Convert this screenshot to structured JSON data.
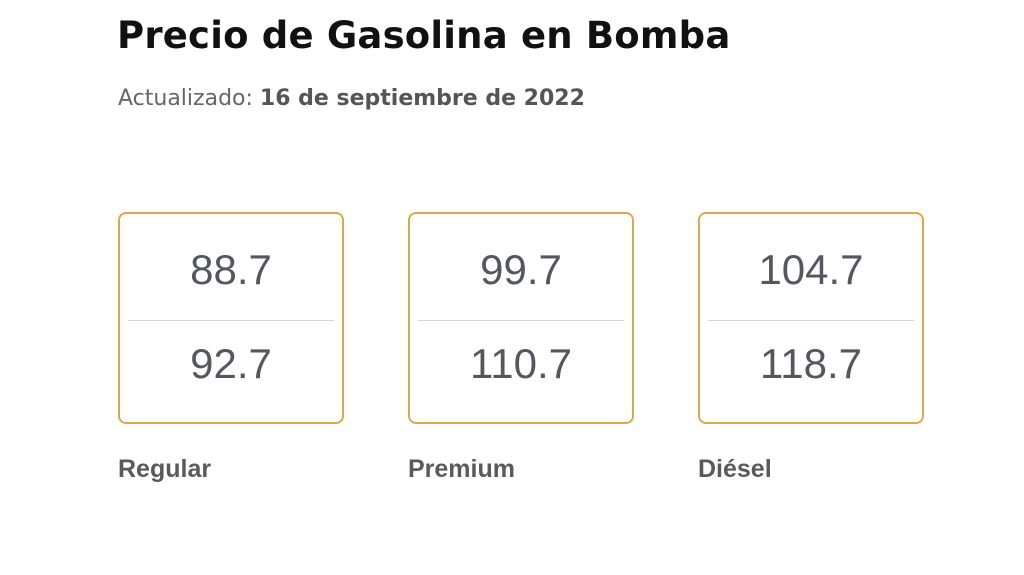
{
  "header": {
    "title": "Precio de Gasolina en Bomba",
    "updated_label": "Actualizado:",
    "updated_date": "16 de septiembre de 2022"
  },
  "colors": {
    "card_border": "#dba94a",
    "value_text": "#55565f"
  },
  "fuels": [
    {
      "label": "Regular",
      "price_top": "88.7",
      "price_bottom": "92.7"
    },
    {
      "label": "Premium",
      "price_top": "99.7",
      "price_bottom": "110.7"
    },
    {
      "label": "Diésel",
      "price_top": "104.7",
      "price_bottom": "118.7"
    }
  ]
}
